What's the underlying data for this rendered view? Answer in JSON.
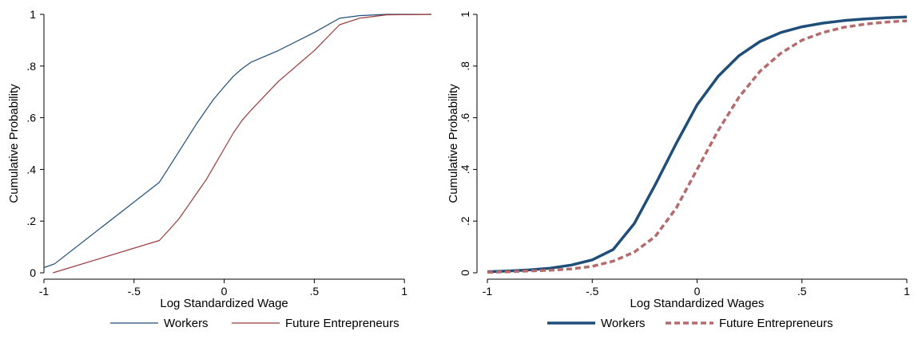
{
  "colors": {
    "workers": "#1f4e79",
    "entrepreneurs": "#9b3a3a",
    "entrepreneurs_right": "#b56b6b"
  },
  "chart_data": [
    {
      "type": "line",
      "xlabel": "Log Standardized Wage",
      "ylabel": "Cumulative Probability",
      "xlim": [
        -1.0,
        1.15
      ],
      "ylim": [
        0,
        1
      ],
      "xticks": [
        -1,
        -0.5,
        0,
        0.5,
        1
      ],
      "xtick_labels": [
        "-1",
        "-.5",
        "0",
        ".5",
        "1"
      ],
      "yticks": [
        0,
        0.2,
        0.4,
        0.6,
        0.8,
        1
      ],
      "ytick_labels": [
        "0",
        ".2",
        ".4",
        ".6",
        ".8",
        "1"
      ],
      "ytick_rotation": "horizontal",
      "grid": false,
      "legend_position": "bottom",
      "series": [
        {
          "name": "Workers",
          "style": "solid-thin",
          "x": [
            -1.0,
            -0.94,
            -0.36,
            -0.25,
            -0.15,
            -0.06,
            0.0,
            0.05,
            0.1,
            0.15,
            0.3,
            0.5,
            0.64,
            0.75,
            0.9,
            1.15
          ],
          "y": [
            0.02,
            0.035,
            0.35,
            0.47,
            0.58,
            0.67,
            0.72,
            0.76,
            0.79,
            0.815,
            0.86,
            0.93,
            0.985,
            0.995,
            1.0,
            1.0
          ]
        },
        {
          "name": "Future Entrepreneurs",
          "style": "solid-thin",
          "x": [
            -0.95,
            -0.36,
            -0.3,
            -0.25,
            -0.2,
            -0.15,
            -0.1,
            -0.05,
            0.0,
            0.05,
            0.1,
            0.15,
            0.3,
            0.5,
            0.64,
            0.75,
            0.9,
            1.15
          ],
          "y": [
            0.0,
            0.125,
            0.17,
            0.21,
            0.26,
            0.31,
            0.36,
            0.42,
            0.48,
            0.54,
            0.59,
            0.63,
            0.74,
            0.86,
            0.96,
            0.985,
            0.998,
            1.0
          ]
        }
      ]
    },
    {
      "type": "line",
      "xlabel": "Log Standardized Wages",
      "ylabel": "Cumulative Probability",
      "xlim": [
        -1.0,
        1.0
      ],
      "ylim": [
        0,
        1
      ],
      "xticks": [
        -1,
        -0.5,
        0,
        0.5,
        1
      ],
      "xtick_labels": [
        "-1",
        "-.5",
        "0",
        ".5",
        "1"
      ],
      "yticks": [
        0,
        0.2,
        0.4,
        0.6,
        0.8,
        1
      ],
      "ytick_labels": [
        "0",
        ".2",
        ".4",
        ".6",
        ".8",
        "1"
      ],
      "ytick_rotation": "vertical",
      "grid": false,
      "legend_position": "bottom",
      "series": [
        {
          "name": "Workers",
          "style": "solid-thick",
          "x": [
            -1.0,
            -0.9,
            -0.8,
            -0.7,
            -0.6,
            -0.5,
            -0.4,
            -0.3,
            -0.2,
            -0.1,
            0.0,
            0.1,
            0.2,
            0.3,
            0.4,
            0.5,
            0.6,
            0.7,
            0.8,
            0.9,
            1.0
          ],
          "y": [
            0.004,
            0.007,
            0.011,
            0.018,
            0.03,
            0.05,
            0.09,
            0.19,
            0.34,
            0.5,
            0.65,
            0.76,
            0.84,
            0.895,
            0.93,
            0.952,
            0.966,
            0.976,
            0.982,
            0.987,
            0.99
          ]
        },
        {
          "name": "Future Entrepreneurs",
          "style": "dashed-thick",
          "x": [
            -1.0,
            -0.9,
            -0.8,
            -0.7,
            -0.6,
            -0.5,
            -0.4,
            -0.3,
            -0.2,
            -0.1,
            0.0,
            0.1,
            0.2,
            0.3,
            0.4,
            0.5,
            0.6,
            0.7,
            0.8,
            0.9,
            1.0
          ],
          "y": [
            0.002,
            0.004,
            0.007,
            0.01,
            0.015,
            0.025,
            0.045,
            0.08,
            0.14,
            0.25,
            0.4,
            0.55,
            0.68,
            0.78,
            0.85,
            0.9,
            0.93,
            0.95,
            0.962,
            0.97,
            0.975
          ]
        }
      ]
    }
  ]
}
